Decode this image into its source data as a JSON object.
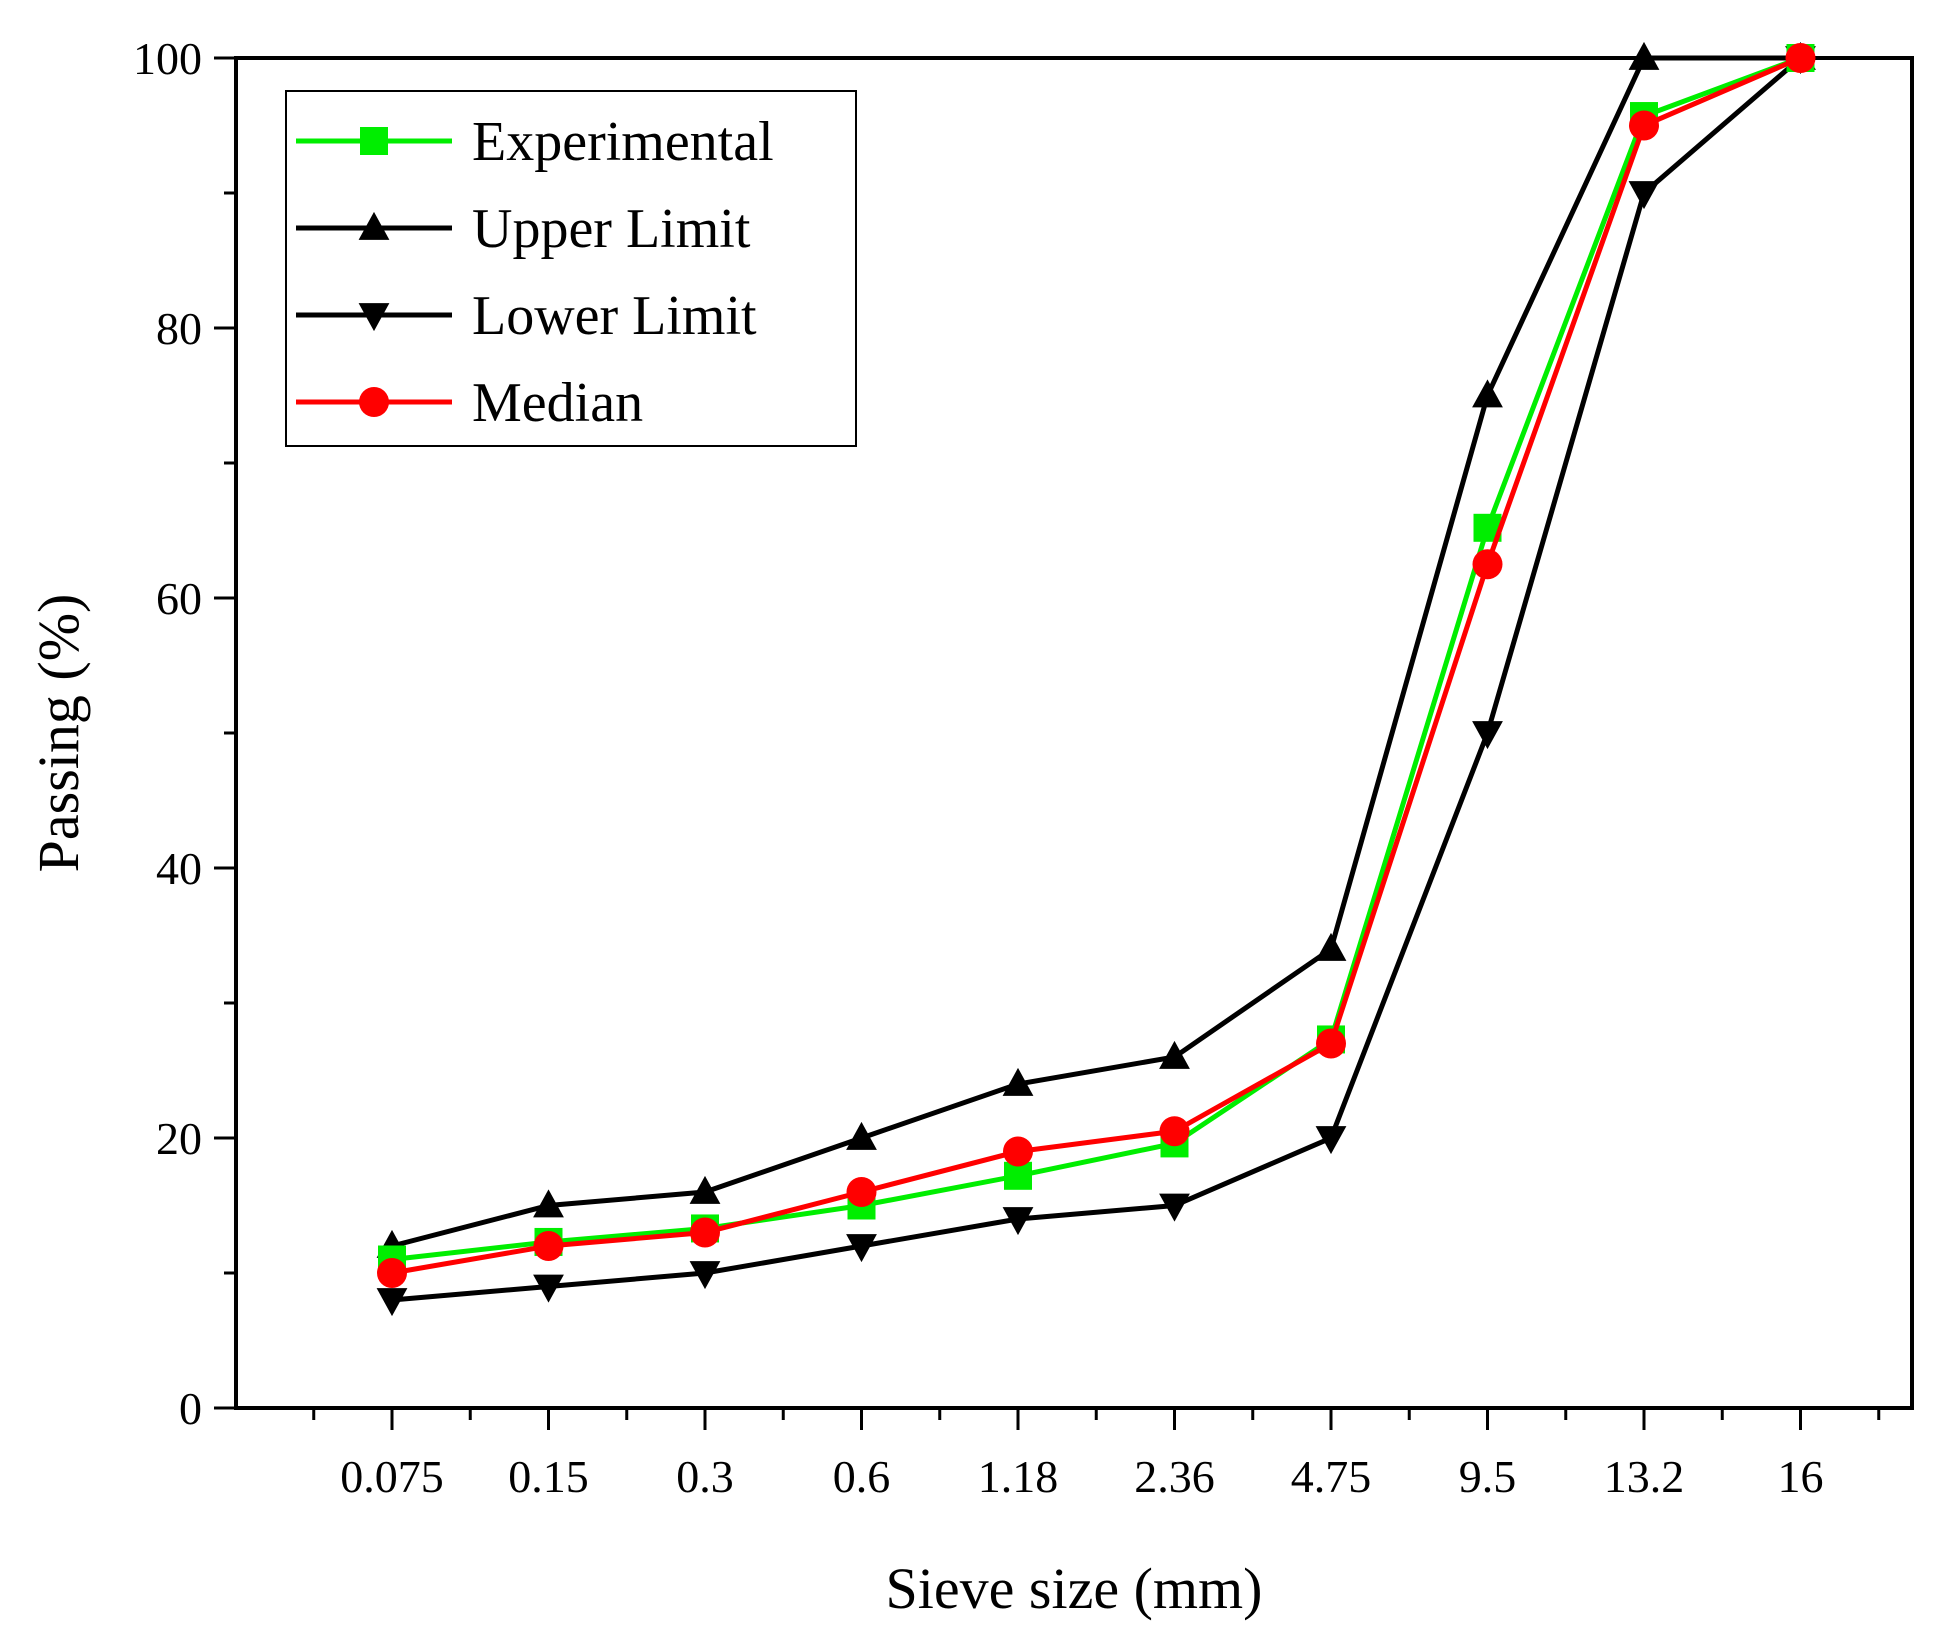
{
  "chart_data": {
    "type": "line",
    "categories": [
      "0.075",
      "0.15",
      "0.3",
      "0.6",
      "1.18",
      "2.36",
      "4.75",
      "9.5",
      "13.2",
      "16"
    ],
    "xlabel": "Sieve size (mm)",
    "ylabel": "Passing (%)",
    "ylim": [
      0,
      100
    ],
    "yticks": [
      0,
      20,
      40,
      60,
      80,
      100
    ],
    "y_minor_step": 10,
    "grid": false,
    "legend_position": "top-left",
    "series": [
      {
        "name": "Experimental",
        "color": "#00ee00",
        "marker": "square",
        "values": [
          11,
          12.3,
          13.3,
          15,
          17.2,
          19.6,
          27.3,
          65.2,
          95.7,
          100
        ]
      },
      {
        "name": "Upper Limit",
        "color": "#000000",
        "marker": "triangle-up",
        "values": [
          12,
          15,
          16,
          20,
          24,
          26,
          34,
          75,
          100,
          100
        ]
      },
      {
        "name": "Lower Limit",
        "color": "#000000",
        "marker": "triangle-down",
        "values": [
          8,
          9,
          10,
          12,
          14,
          15,
          20,
          50,
          90,
          100
        ]
      },
      {
        "name": "Median",
        "color": "#ff0000",
        "marker": "circle",
        "values": [
          10,
          12,
          13,
          16,
          19,
          20.5,
          27,
          62.5,
          95,
          100
        ]
      }
    ]
  }
}
